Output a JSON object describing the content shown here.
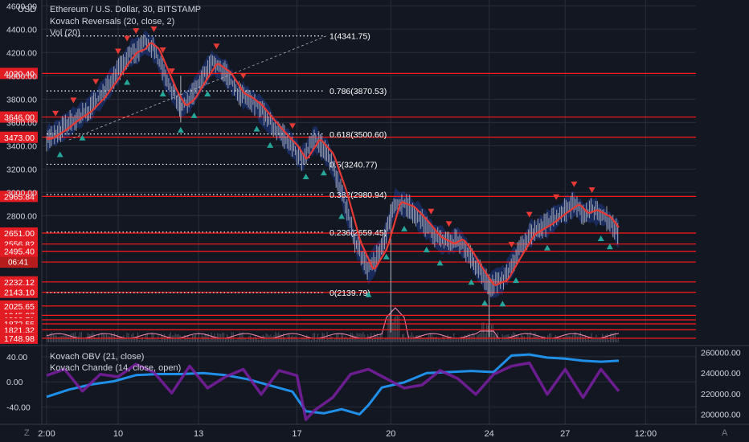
{
  "header": {
    "currency": "USD",
    "symbol_line": "Ethereum / U.S. Dollar, 30, BITSTAMP",
    "indicator1": "Kovach Reversals (20, close, 2)",
    "indicator2": "Vol (20)",
    "sub_indicator1": "Kovach OBV (21, close)",
    "sub_indicator2": "Kovach Chande (14, close, open)",
    "corner_left": "Z",
    "corner_right": "A"
  },
  "colors": {
    "background": "#131722",
    "level_line": "#ff1a1a",
    "price_label_bg": "#e31b23",
    "candles": "#b2b5be",
    "ma": "#e53935",
    "band": "#1e3a8a",
    "obv": "#2196f3",
    "chande": "#7b1fa2",
    "up_marker": "#26a69a",
    "down_marker": "#e53935"
  },
  "chart_data": [
    {
      "type": "line",
      "title": "Ethereum / U.S. Dollar, 30, BITSTAMP",
      "x_ticks": [
        "2:00",
        "10",
        "13",
        "17",
        "20",
        "24",
        "27",
        "12:00"
      ],
      "y_ticks": [
        "4600.00",
        "4400.00",
        "4200.00",
        "4000.00",
        "3800.00",
        "3600.00",
        "3400.00",
        "3200.00",
        "3000.00",
        "2800.00"
      ],
      "ylim": [
        1700,
        4650
      ],
      "price_path": {
        "x": [
          0,
          3,
          6,
          9,
          12,
          15,
          17,
          19,
          21,
          22,
          24,
          26,
          28,
          30,
          32,
          34,
          37,
          40,
          43,
          45,
          47,
          50,
          53,
          55,
          57,
          60,
          63,
          66,
          69,
          72,
          75,
          78,
          81,
          84,
          87,
          90,
          92,
          94,
          96,
          99,
          102,
          105,
          108,
          112,
          115,
          118,
          120,
          122,
          125,
          128
        ],
        "y": [
          3460,
          3530,
          3620,
          3700,
          3820,
          3980,
          4100,
          4200,
          4230,
          4290,
          4230,
          4050,
          3870,
          3740,
          3800,
          3930,
          4110,
          4030,
          3850,
          3810,
          3750,
          3610,
          3480,
          3400,
          3280,
          3460,
          3330,
          3000,
          2580,
          2330,
          2520,
          2920,
          2880,
          2760,
          2620,
          2560,
          2600,
          2500,
          2370,
          2200,
          2250,
          2450,
          2640,
          2730,
          2820,
          2900,
          2820,
          2850,
          2790,
          2640
        ]
      },
      "horizontal_levels": [
        {
          "value": "4020.40"
        },
        {
          "value": "3646.00"
        },
        {
          "value": "3473.00"
        },
        {
          "value": "2965.84"
        },
        {
          "value": "2651.00"
        },
        {
          "value": "2556.82"
        },
        {
          "value": "2495.40"
        },
        {
          "value": "2402.47"
        },
        {
          "value": "2232.12"
        },
        {
          "value": "2143.10"
        },
        {
          "value": "2025.65"
        },
        {
          "value": "1945.37"
        },
        {
          "value": "1906.71"
        },
        {
          "value": "1872.55"
        },
        {
          "value": "1821.32"
        },
        {
          "value": "1748.98"
        }
      ],
      "current_time_label": "06:41",
      "fibonacci": [
        {
          "label": "1(4341.75)",
          "value": 4341.75
        },
        {
          "label": "0.786(3870.53)",
          "value": 3870.53
        },
        {
          "label": "0.618(3500.60)",
          "value": 3500.6
        },
        {
          "label": "0.5(3240.77)",
          "value": 3240.77
        },
        {
          "label": "0.382(2980.94)",
          "value": 2980.94
        },
        {
          "label": "0.236(2659.45)",
          "value": 2659.45
        },
        {
          "label": "0(2139.79)",
          "value": 2139.79
        }
      ]
    },
    {
      "type": "line",
      "left_y_ticks": [
        "40.00",
        "0.00",
        "-40.00"
      ],
      "right_y_ticks": [
        "260000.00",
        "240000.00",
        "220000.00",
        "200000.00"
      ],
      "chande_ylim": [
        -60,
        50
      ],
      "obv_ylim": [
        195000,
        262000
      ],
      "series": [
        {
          "name": "Kovach OBV (21, close)",
          "axis": "right",
          "x": [
            0,
            5,
            10,
            15,
            20,
            25,
            30,
            35,
            40,
            45,
            50,
            55,
            58,
            62,
            66,
            70,
            72,
            75,
            80,
            85,
            90,
            95,
            100,
            104,
            108,
            112,
            116,
            120,
            124,
            128
          ],
          "y": [
            217000,
            224000,
            229000,
            232000,
            238000,
            239000,
            239000,
            240000,
            238000,
            234000,
            228000,
            222000,
            203000,
            201000,
            205000,
            200000,
            209000,
            226000,
            231000,
            240000,
            241000,
            242000,
            241000,
            257000,
            258000,
            255000,
            254000,
            252000,
            251000,
            252000
          ]
        },
        {
          "name": "Kovach Chande (14, close, open)",
          "axis": "left",
          "x": [
            0,
            4,
            8,
            12,
            16,
            20,
            24,
            28,
            32,
            36,
            40,
            44,
            48,
            52,
            56,
            58,
            60,
            64,
            68,
            72,
            76,
            80,
            84,
            88,
            92,
            96,
            100,
            104,
            108,
            112,
            116,
            120,
            124,
            128
          ],
          "y": [
            10,
            20,
            -15,
            12,
            8,
            28,
            15,
            -18,
            25,
            -10,
            8,
            20,
            -20,
            18,
            10,
            -60,
            -45,
            -25,
            12,
            20,
            5,
            -10,
            -5,
            18,
            5,
            -20,
            12,
            25,
            30,
            -20,
            20,
            -25,
            20,
            -15
          ]
        }
      ]
    }
  ]
}
